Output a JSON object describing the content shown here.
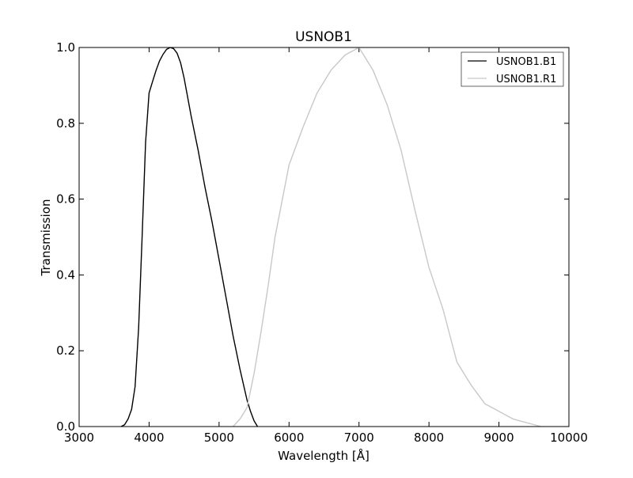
{
  "chart_data": {
    "type": "line",
    "title": "USNOB1",
    "xlabel": "Wavelength [Å]",
    "ylabel": "Transmission",
    "xlim": [
      3000,
      10000
    ],
    "ylim": [
      0,
      1.0
    ],
    "xticks": [
      3000,
      4000,
      5000,
      6000,
      7000,
      8000,
      9000,
      10000
    ],
    "xtick_labels": [
      "3000",
      "4000",
      "5000",
      "6000",
      "7000",
      "8000",
      "9000",
      "10000"
    ],
    "yticks": [
      0.0,
      0.2,
      0.4,
      0.6,
      0.8,
      1.0
    ],
    "ytick_labels": [
      "0.0",
      "0.2",
      "0.4",
      "0.6",
      "0.8",
      "1.0"
    ],
    "grid": false,
    "legend_position": "top-right",
    "series": [
      {
        "name": "USNOB1.B1",
        "color": "#000000",
        "points": [
          [
            3600,
            0.0
          ],
          [
            3650,
            0.005
          ],
          [
            3700,
            0.02
          ],
          [
            3750,
            0.045
          ],
          [
            3800,
            0.105
          ],
          [
            3850,
            0.26
          ],
          [
            3900,
            0.5
          ],
          [
            3950,
            0.75
          ],
          [
            4000,
            0.88
          ],
          [
            4050,
            0.91
          ],
          [
            4100,
            0.94
          ],
          [
            4150,
            0.965
          ],
          [
            4200,
            0.982
          ],
          [
            4250,
            0.995
          ],
          [
            4300,
            1.0
          ],
          [
            4350,
            0.997
          ],
          [
            4400,
            0.985
          ],
          [
            4450,
            0.96
          ],
          [
            4500,
            0.92
          ],
          [
            4600,
            0.82
          ],
          [
            4700,
            0.73
          ],
          [
            4800,
            0.63
          ],
          [
            4900,
            0.54
          ],
          [
            5000,
            0.44
          ],
          [
            5100,
            0.34
          ],
          [
            5200,
            0.24
          ],
          [
            5300,
            0.15
          ],
          [
            5350,
            0.11
          ],
          [
            5400,
            0.07
          ],
          [
            5450,
            0.04
          ],
          [
            5500,
            0.015
          ],
          [
            5550,
            0.0
          ]
        ]
      },
      {
        "name": "USNOB1.R1",
        "color": "#c8c8c8",
        "points": [
          [
            5200,
            0.0
          ],
          [
            5300,
            0.02
          ],
          [
            5400,
            0.05
          ],
          [
            5500,
            0.14
          ],
          [
            5600,
            0.25
          ],
          [
            5700,
            0.37
          ],
          [
            5800,
            0.5
          ],
          [
            6000,
            0.69
          ],
          [
            6200,
            0.79
          ],
          [
            6400,
            0.88
          ],
          [
            6600,
            0.94
          ],
          [
            6800,
            0.98
          ],
          [
            7000,
            1.0
          ],
          [
            7200,
            0.94
          ],
          [
            7400,
            0.85
          ],
          [
            7600,
            0.73
          ],
          [
            7800,
            0.57
          ],
          [
            8000,
            0.42
          ],
          [
            8200,
            0.31
          ],
          [
            8400,
            0.17
          ],
          [
            8600,
            0.11
          ],
          [
            8800,
            0.06
          ],
          [
            9000,
            0.04
          ],
          [
            9200,
            0.02
          ],
          [
            9600,
            0.0
          ]
        ]
      }
    ]
  }
}
